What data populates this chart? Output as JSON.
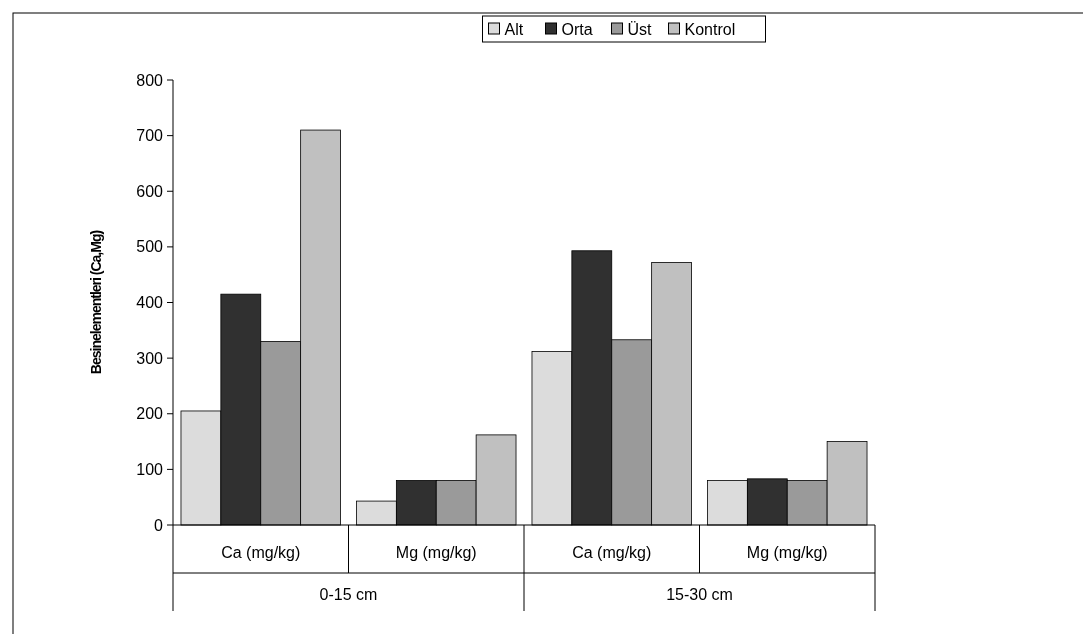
{
  "chart_data": {
    "type": "bar",
    "ylabel": "Besinelementleri (Ca,Mg)",
    "categories": [
      "Ca (mg/kg)",
      "Mg (mg/kg)",
      "Ca (mg/kg)",
      "Mg (mg/kg)"
    ],
    "annotations": [
      "0-15 cm",
      "15-30 cm"
    ],
    "series": [
      {
        "name": "Alt",
        "color": "#dcdcdc",
        "values": [
          205,
          43,
          312,
          80
        ]
      },
      {
        "name": "Orta",
        "color": "#303030",
        "values": [
          415,
          80,
          493,
          83
        ]
      },
      {
        "name": "Üst",
        "color": "#9a9a9a",
        "values": [
          330,
          80,
          333,
          80
        ]
      },
      {
        "name": "Kontrol",
        "color": "#c0c0c0",
        "values": [
          710,
          162,
          472,
          150
        ]
      }
    ],
    "ylim": [
      0,
      800
    ],
    "yticks": [
      0,
      100,
      200,
      300,
      400,
      500,
      600,
      700,
      800
    ],
    "legend": "top",
    "grid": false
  }
}
